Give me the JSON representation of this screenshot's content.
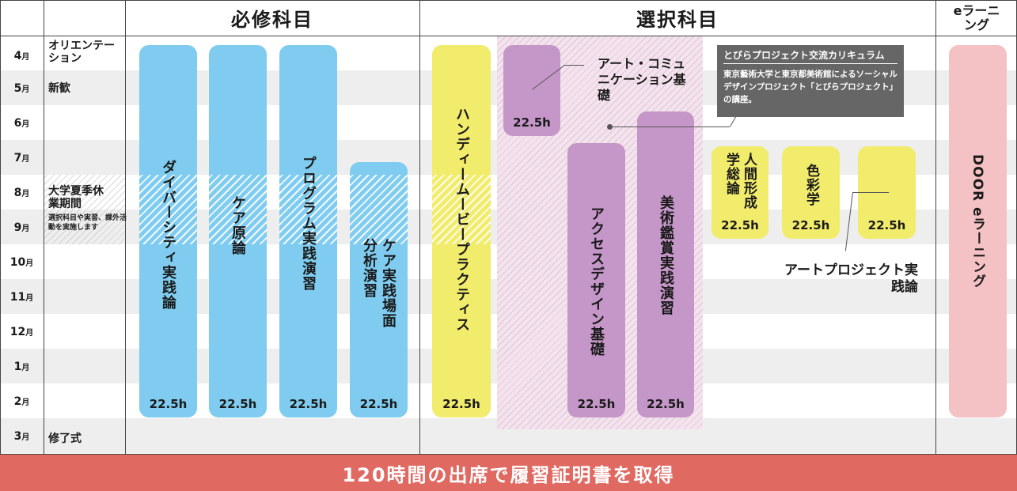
{
  "headers": {
    "required": "必修科目",
    "elective": "選択科目",
    "elearning": "eラーニング"
  },
  "months": [
    {
      "num": "4",
      "unit": "月"
    },
    {
      "num": "5",
      "unit": "月"
    },
    {
      "num": "6",
      "unit": "月"
    },
    {
      "num": "7",
      "unit": "月"
    },
    {
      "num": "8",
      "unit": "月"
    },
    {
      "num": "9",
      "unit": "月"
    },
    {
      "num": "10",
      "unit": "月"
    },
    {
      "num": "11",
      "unit": "月"
    },
    {
      "num": "12",
      "unit": "月"
    },
    {
      "num": "1",
      "unit": "月"
    },
    {
      "num": "2",
      "unit": "月"
    },
    {
      "num": "3",
      "unit": "月"
    }
  ],
  "events": {
    "orientation": "オリエンテーション",
    "welcome": "新歓",
    "summer": "大学夏季休業期間",
    "summer_note": "選択科目や実習、課外活動を実施します",
    "graduation": "修了式"
  },
  "required_courses": [
    {
      "name": "ダイバーシティ実践論",
      "hours": "22.5h"
    },
    {
      "name": "ケア原論",
      "hours": "22.5h"
    },
    {
      "name": "プログラム実践演習",
      "hours": "22.5h"
    },
    {
      "name": "ケア実践場面分析演習",
      "hours": "22.5h"
    }
  ],
  "elective_courses": {
    "handy": {
      "name": "ハンディームービープラクティス",
      "hours": "22.5h"
    },
    "art_comm": {
      "name": "アート・コミュニケーション基礎",
      "hours": "22.5h"
    },
    "access": {
      "name": "アクセスデザイン基礎",
      "hours": "22.5h"
    },
    "art_appreciation": {
      "name": "美術鑑賞実践演習",
      "hours": "22.5h"
    },
    "humanities": {
      "name": "人間形成学総論",
      "hours": "22.5h"
    },
    "color": {
      "name": "色彩学",
      "hours": "22.5h"
    },
    "art_project": {
      "name": "アートプロジェクト実践論",
      "hours": "22.5h"
    }
  },
  "tobira": {
    "title": "とびらプロジェクト交流カリキュラム",
    "body": "東京藝術大学と東京都美術館によるソーシャルデザインプロジェクト「とびらプロジェクト」の講座。"
  },
  "elearning_course": {
    "name": "DOOR eラーニング"
  },
  "footer": "120時間の出席で履習証明書を取得",
  "colors": {
    "required": "#7fccf0",
    "elective_yellow": "#f2ec6c",
    "elective_purple": "#c596c8",
    "elearning": "#f4c1c4",
    "footer": "#e06a62"
  }
}
